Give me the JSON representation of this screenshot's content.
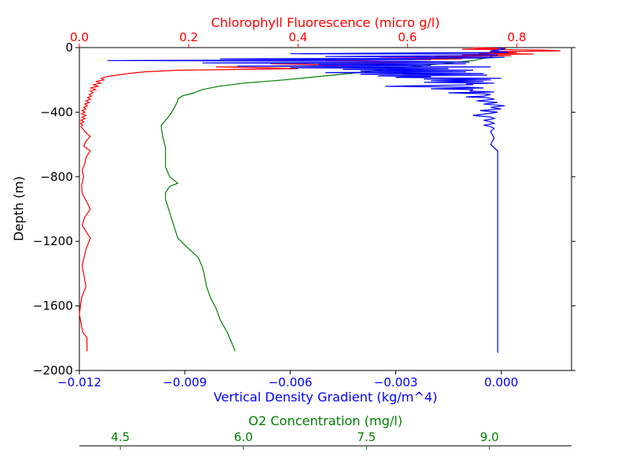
{
  "chart_data": {
    "type": "line",
    "colors": {
      "density": "#0000ff",
      "chlorophyll": "#ff0000",
      "oxygen": "#008000",
      "axis": "#000000"
    },
    "grid": false,
    "y_axis": {
      "label": "Depth (m)",
      "range": [
        -2000,
        0
      ],
      "ticks": [
        0,
        -400,
        -800,
        -1200,
        -1600,
        -2000
      ],
      "tick_labels": [
        "0",
        "−400",
        "−800",
        "−1200",
        "−1600",
        "−2000"
      ],
      "color": "#000000"
    },
    "x_axes": {
      "density": {
        "label": "Vertical Density Gradient (kg/m^4)",
        "position": "bottom",
        "range": [
          -0.012,
          0.002
        ],
        "ticks": [
          -0.012,
          -0.009,
          -0.006,
          -0.003,
          0.0
        ],
        "tick_labels": [
          "−0.012",
          "−0.009",
          "−0.006",
          "−0.003",
          "0.000"
        ]
      },
      "chlorophyll": {
        "label": "Chlorophyll Fluorescence (micro g/l)",
        "position": "top",
        "range": [
          0.0,
          0.9
        ],
        "ticks": [
          0.0,
          0.2,
          0.4,
          0.6,
          0.8
        ],
        "tick_labels": [
          "0.0",
          "0.2",
          "0.4",
          "0.6",
          "0.8"
        ]
      },
      "oxygen": {
        "label": "O2 Concentration (mg/l)",
        "position": "bottom-offset",
        "range": [
          4.0,
          10.0
        ],
        "ticks": [
          4.5,
          6.0,
          7.5,
          9.0
        ],
        "tick_labels": [
          "4.5",
          "6.0",
          "7.5",
          "9.0"
        ]
      }
    },
    "series": [
      {
        "axis": "density",
        "points": [
          [
            -0.0001,
            0
          ],
          [
            0.0001,
            -10
          ],
          [
            -0.0003,
            -20
          ],
          [
            0.0002,
            -30
          ],
          [
            -0.006,
            -38
          ],
          [
            -0.0004,
            -40
          ],
          [
            -0.0001,
            -48
          ],
          [
            -0.005,
            -55
          ],
          [
            0.0001,
            -60
          ],
          [
            -0.0005,
            -65
          ],
          [
            -0.008,
            -70
          ],
          [
            -0.002,
            -75
          ],
          [
            -0.0112,
            -80
          ],
          [
            -0.003,
            -85
          ],
          [
            -0.0009,
            -90
          ],
          [
            -0.0085,
            -95
          ],
          [
            -0.001,
            -100
          ],
          [
            -0.0052,
            -105
          ],
          [
            -0.002,
            -110
          ],
          [
            -0.0075,
            -115
          ],
          [
            -0.0003,
            -120
          ],
          [
            -0.006,
            -125
          ],
          [
            -0.0015,
            -130
          ],
          [
            -0.0045,
            -135
          ],
          [
            -0.0008,
            -140
          ],
          [
            -0.004,
            -145
          ],
          [
            -0.001,
            -150
          ],
          [
            -0.005,
            -155
          ],
          [
            -0.0005,
            -160
          ],
          [
            -0.004,
            -165
          ],
          [
            -0.0004,
            -170
          ],
          [
            -0.0035,
            -175
          ],
          [
            -0.002,
            -180
          ],
          [
            -0.003,
            -185
          ],
          [
            0.0,
            -190
          ],
          [
            -0.0022,
            -195
          ],
          [
            -0.0003,
            -200
          ],
          [
            -0.002,
            -205
          ],
          [
            -0.0005,
            -210
          ],
          [
            -0.0022,
            -215
          ],
          [
            -0.0002,
            -220
          ],
          [
            -0.001,
            -225
          ],
          [
            -0.0008,
            -230
          ],
          [
            -0.0033,
            -240
          ],
          [
            -0.001,
            -245
          ],
          [
            -0.0005,
            -250
          ],
          [
            -0.002,
            -255
          ],
          [
            -0.0008,
            -260
          ],
          [
            -0.0009,
            -270
          ],
          [
            -0.0002,
            -275
          ],
          [
            -0.0015,
            -280
          ],
          [
            -0.0006,
            -285
          ],
          [
            -0.0003,
            -290
          ],
          [
            -0.0005,
            -300
          ],
          [
            -0.001,
            -305
          ],
          [
            -0.0004,
            -310
          ],
          [
            -0.0002,
            -320
          ],
          [
            -0.0007,
            -330
          ],
          [
            -0.0001,
            -340
          ],
          [
            -0.0005,
            -350
          ],
          [
            0.0001,
            -360
          ],
          [
            -0.0003,
            -370
          ],
          [
            0.0,
            -380
          ],
          [
            -0.0006,
            -390
          ],
          [
            -0.0001,
            -400
          ],
          [
            -0.0004,
            -410
          ],
          [
            -0.0008,
            -420
          ],
          [
            -0.0003,
            -430
          ],
          [
            -0.0002,
            -440
          ],
          [
            -0.0005,
            -450
          ],
          [
            -0.0003,
            -460
          ],
          [
            -0.0002,
            -470
          ],
          [
            -0.0005,
            -480
          ],
          [
            -0.0003,
            -490
          ],
          [
            -0.0002,
            -500
          ],
          [
            -0.0003,
            -520
          ],
          [
            -0.0002,
            -560
          ],
          [
            -0.0003,
            -600
          ],
          [
            -0.0001,
            -640
          ],
          [
            -0.0001,
            -680
          ],
          [
            -0.0001,
            -720
          ],
          [
            -0.0001,
            -760
          ],
          [
            -0.0001,
            -800
          ],
          [
            -0.0001,
            -850
          ],
          [
            -0.0001,
            -900
          ],
          [
            -0.0001,
            -950
          ],
          [
            -0.0001,
            -1000
          ],
          [
            -0.0001,
            -1050
          ],
          [
            -0.0001,
            -1100
          ],
          [
            -0.0001,
            -1150
          ],
          [
            -0.0001,
            -1200
          ],
          [
            -0.0001,
            -1250
          ],
          [
            -0.0001,
            -1300
          ],
          [
            -0.0001,
            -1350
          ],
          [
            -0.0001,
            -1400
          ],
          [
            -0.0001,
            -1450
          ],
          [
            -0.0001,
            -1500
          ],
          [
            -0.0001,
            -1550
          ],
          [
            -0.0001,
            -1600
          ],
          [
            -0.0001,
            -1650
          ],
          [
            -0.0001,
            -1700
          ],
          [
            -0.0001,
            -1750
          ],
          [
            -0.0001,
            -1800
          ],
          [
            -0.0001,
            -1850
          ],
          [
            -0.0001,
            -1890
          ]
        ]
      },
      {
        "axis": "chlorophyll",
        "points": [
          [
            0.72,
            0
          ],
          [
            0.78,
            -5
          ],
          [
            0.7,
            -10
          ],
          [
            0.85,
            -15
          ],
          [
            0.88,
            -20
          ],
          [
            0.75,
            -25
          ],
          [
            0.8,
            -30
          ],
          [
            0.73,
            -35
          ],
          [
            0.83,
            -40
          ],
          [
            0.7,
            -45
          ],
          [
            0.79,
            -50
          ],
          [
            0.65,
            -55
          ],
          [
            0.76,
            -60
          ],
          [
            0.55,
            -65
          ],
          [
            0.7,
            -70
          ],
          [
            0.45,
            -80
          ],
          [
            0.62,
            -90
          ],
          [
            0.35,
            -100
          ],
          [
            0.5,
            -110
          ],
          [
            0.25,
            -120
          ],
          [
            0.4,
            -130
          ],
          [
            0.18,
            -140
          ],
          [
            0.12,
            -150
          ],
          [
            0.09,
            -160
          ],
          [
            0.07,
            -170
          ],
          [
            0.05,
            -180
          ],
          [
            0.04,
            -190
          ],
          [
            0.045,
            -200
          ],
          [
            0.03,
            -210
          ],
          [
            0.04,
            -220
          ],
          [
            0.025,
            -230
          ],
          [
            0.035,
            -240
          ],
          [
            0.02,
            -250
          ],
          [
            0.03,
            -260
          ],
          [
            0.02,
            -270
          ],
          [
            0.025,
            -280
          ],
          [
            0.018,
            -290
          ],
          [
            0.022,
            -300
          ],
          [
            0.015,
            -310
          ],
          [
            0.02,
            -320
          ],
          [
            0.012,
            -330
          ],
          [
            0.018,
            -340
          ],
          [
            0.01,
            -350
          ],
          [
            0.015,
            -360
          ],
          [
            0.008,
            -370
          ],
          [
            0.012,
            -380
          ],
          [
            0.005,
            -390
          ],
          [
            0.01,
            -400
          ],
          [
            0.004,
            -410
          ],
          [
            0.012,
            -420
          ],
          [
            0.005,
            -430
          ],
          [
            0.01,
            -440
          ],
          [
            0.003,
            -450
          ],
          [
            0.008,
            -460
          ],
          [
            0.002,
            -470
          ],
          [
            0.006,
            -480
          ],
          [
            0.003,
            -490
          ],
          [
            0.01,
            -520
          ],
          [
            0.02,
            -550
          ],
          [
            0.012,
            -580
          ],
          [
            0.008,
            -610
          ],
          [
            0.02,
            -640
          ],
          [
            0.012,
            -680
          ],
          [
            0.01,
            -720
          ],
          [
            0.005,
            -760
          ],
          [
            0.008,
            -800
          ],
          [
            0.004,
            -850
          ],
          [
            0.005,
            -900
          ],
          [
            0.02,
            -1000
          ],
          [
            0.01,
            -1050
          ],
          [
            0.005,
            -1100
          ],
          [
            0.02,
            -1180
          ],
          [
            0.012,
            -1250
          ],
          [
            0.005,
            -1350
          ],
          [
            0.012,
            -1480
          ],
          [
            0.004,
            -1550
          ],
          [
            0.0,
            -1650
          ],
          [
            0.006,
            -1760
          ],
          [
            0.014,
            -1800
          ],
          [
            0.014,
            -1880
          ]
        ]
      },
      {
        "axis": "oxygen",
        "points": [
          [
            9.1,
            0
          ],
          [
            9.1,
            -20
          ],
          [
            9.1,
            -40
          ],
          [
            9.0,
            -60
          ],
          [
            8.8,
            -80
          ],
          [
            8.4,
            -100
          ],
          [
            8.0,
            -120
          ],
          [
            7.5,
            -150
          ],
          [
            6.5,
            -200
          ],
          [
            6.0,
            -220
          ],
          [
            5.7,
            -240
          ],
          [
            5.5,
            -260
          ],
          [
            5.4,
            -280
          ],
          [
            5.25,
            -300
          ],
          [
            5.2,
            -320
          ],
          [
            5.2,
            -330
          ],
          [
            5.15,
            -380
          ],
          [
            5.1,
            -420
          ],
          [
            5.05,
            -450
          ],
          [
            5.0,
            -480
          ],
          [
            5.0,
            -500
          ],
          [
            5.02,
            -560
          ],
          [
            5.05,
            -620
          ],
          [
            5.05,
            -660
          ],
          [
            5.05,
            -740
          ],
          [
            5.1,
            -800
          ],
          [
            5.2,
            -840
          ],
          [
            5.1,
            -860
          ],
          [
            5.05,
            -900
          ],
          [
            5.05,
            -940
          ],
          [
            5.1,
            -1020
          ],
          [
            5.15,
            -1100
          ],
          [
            5.2,
            -1180
          ],
          [
            5.3,
            -1230
          ],
          [
            5.45,
            -1300
          ],
          [
            5.5,
            -1360
          ],
          [
            5.52,
            -1400
          ],
          [
            5.55,
            -1480
          ],
          [
            5.6,
            -1550
          ],
          [
            5.67,
            -1620
          ],
          [
            5.72,
            -1690
          ],
          [
            5.8,
            -1760
          ],
          [
            5.85,
            -1820
          ],
          [
            5.9,
            -1880
          ]
        ]
      }
    ]
  }
}
